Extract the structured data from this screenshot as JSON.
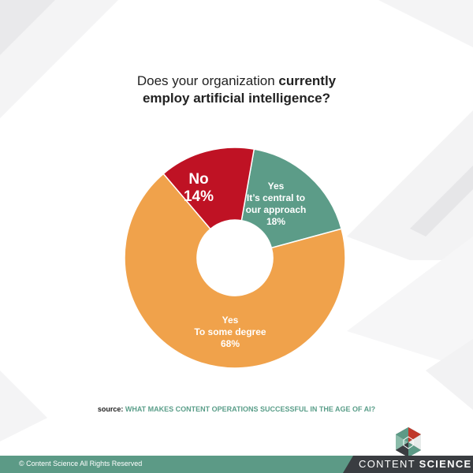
{
  "title": {
    "line1_plain": "Does your organization ",
    "line1_bold": "currently",
    "line2_bold": "employ artificial intelligence?"
  },
  "chart_data": {
    "type": "pie",
    "donut": true,
    "slices": [
      {
        "label_lines": [
          "Yes",
          "It’s central to",
          "our approach"
        ],
        "value_label": "18%",
        "value": 18,
        "color": "#5c9c88"
      },
      {
        "label_lines": [
          "Yes",
          "To some degree"
        ],
        "value_label": "68%",
        "value": 68,
        "color": "#f0a24b"
      },
      {
        "label_lines": [
          "No"
        ],
        "value_label": "14%",
        "value": 14,
        "color": "#bf1224"
      }
    ]
  },
  "source": {
    "label": "source:",
    "text": "What makes content operations successful in the age of AI?"
  },
  "footer": {
    "copyright": "© Content Science All Rights Reserved",
    "brand_light": "CONTENT ",
    "brand_bold": "SCIENCE"
  },
  "colors": {
    "accent_green": "#5c9a86",
    "footer_dark": "#3a3d41",
    "accent_red": "#bf1224",
    "accent_orange": "#f0a24b"
  }
}
